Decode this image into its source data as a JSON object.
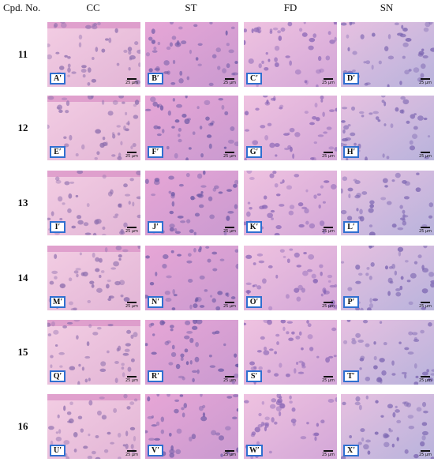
{
  "header": {
    "row_title": "Cpd. No.",
    "columns": [
      "CC",
      "ST",
      "FD",
      "SN"
    ]
  },
  "rows": [
    {
      "label": "11",
      "panels": [
        {
          "label": "A′",
          "scale": "25 μm"
        },
        {
          "label": "B′",
          "scale": "25 μm"
        },
        {
          "label": "C′",
          "scale": "25 μm"
        },
        {
          "label": "D′",
          "scale": "25 μm"
        }
      ]
    },
    {
      "label": "12",
      "panels": [
        {
          "label": "E′",
          "scale": "25 μm"
        },
        {
          "label": "F′",
          "scale": "25 μm"
        },
        {
          "label": "G′",
          "scale": "25 μm"
        },
        {
          "label": "H′",
          "scale": "25 μm"
        }
      ]
    },
    {
      "label": "13",
      "panels": [
        {
          "label": "I′",
          "scale": "25 μm"
        },
        {
          "label": "J′",
          "scale": "25 μm"
        },
        {
          "label": "K′",
          "scale": "25 μm"
        },
        {
          "label": "L′",
          "scale": "25 μm"
        }
      ]
    },
    {
      "label": "14",
      "panels": [
        {
          "label": "M′",
          "scale": "25 μm"
        },
        {
          "label": "N′",
          "scale": "25 μm"
        },
        {
          "label": "O′",
          "scale": "25 μm"
        },
        {
          "label": "P′",
          "scale": "25 μm"
        }
      ]
    },
    {
      "label": "15",
      "panels": [
        {
          "label": "Q′",
          "scale": "25 μm"
        },
        {
          "label": "R′",
          "scale": "25 μm"
        },
        {
          "label": "S′",
          "scale": "25 μm"
        },
        {
          "label": "T′",
          "scale": "25 μm"
        }
      ]
    },
    {
      "label": "16",
      "panels": [
        {
          "label": "U′",
          "scale": "25 μm"
        },
        {
          "label": "V′",
          "scale": "25 μm"
        },
        {
          "label": "W′",
          "scale": "25 μm"
        },
        {
          "label": "X′",
          "scale": "25 μm"
        }
      ]
    }
  ]
}
